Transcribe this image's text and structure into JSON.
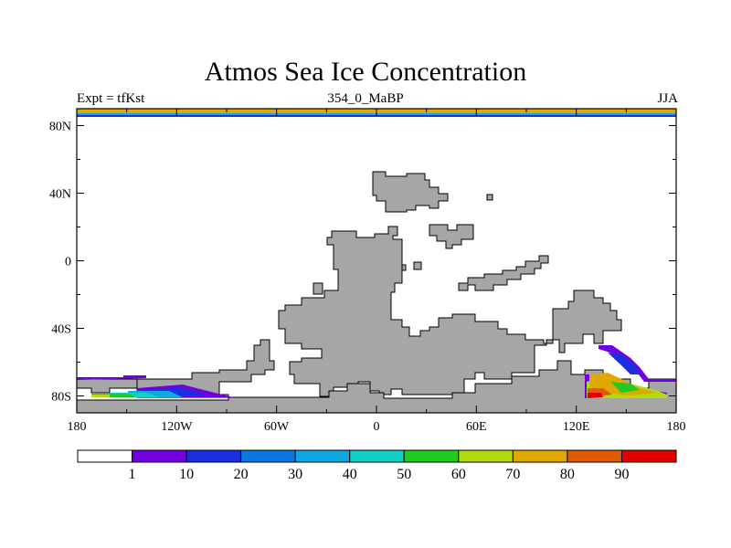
{
  "chart_data": {
    "type": "heatmap",
    "title": "Atmos Sea Ice Concentration",
    "left_label": "Expt = tfKst",
    "center_label": "354_0_MaBP",
    "right_label": "JJA",
    "x_ticks": [
      "180",
      "120W",
      "60W",
      "0",
      "60E",
      "120E",
      "180"
    ],
    "x_values": [
      -180,
      -120,
      -60,
      0,
      60,
      120,
      180
    ],
    "y_ticks": [
      "80N",
      "40N",
      "0",
      "40S",
      "80S"
    ],
    "y_values": [
      80,
      40,
      0,
      -40,
      -80
    ],
    "xlim": [
      -180,
      180
    ],
    "ylim": [
      -90,
      90
    ],
    "land_color": "#a6a6a6",
    "colorbar": {
      "labels": [
        "1",
        "10",
        "20",
        "30",
        "40",
        "50",
        "60",
        "70",
        "80",
        "90"
      ],
      "colors": [
        "#ffffff",
        "#7000e0",
        "#1a2fe0",
        "#0a78e0",
        "#10a8e0",
        "#10d0c8",
        "#20cc20",
        "#b0dc10",
        "#e0a800",
        "#e05a00",
        "#e00000"
      ]
    }
  }
}
